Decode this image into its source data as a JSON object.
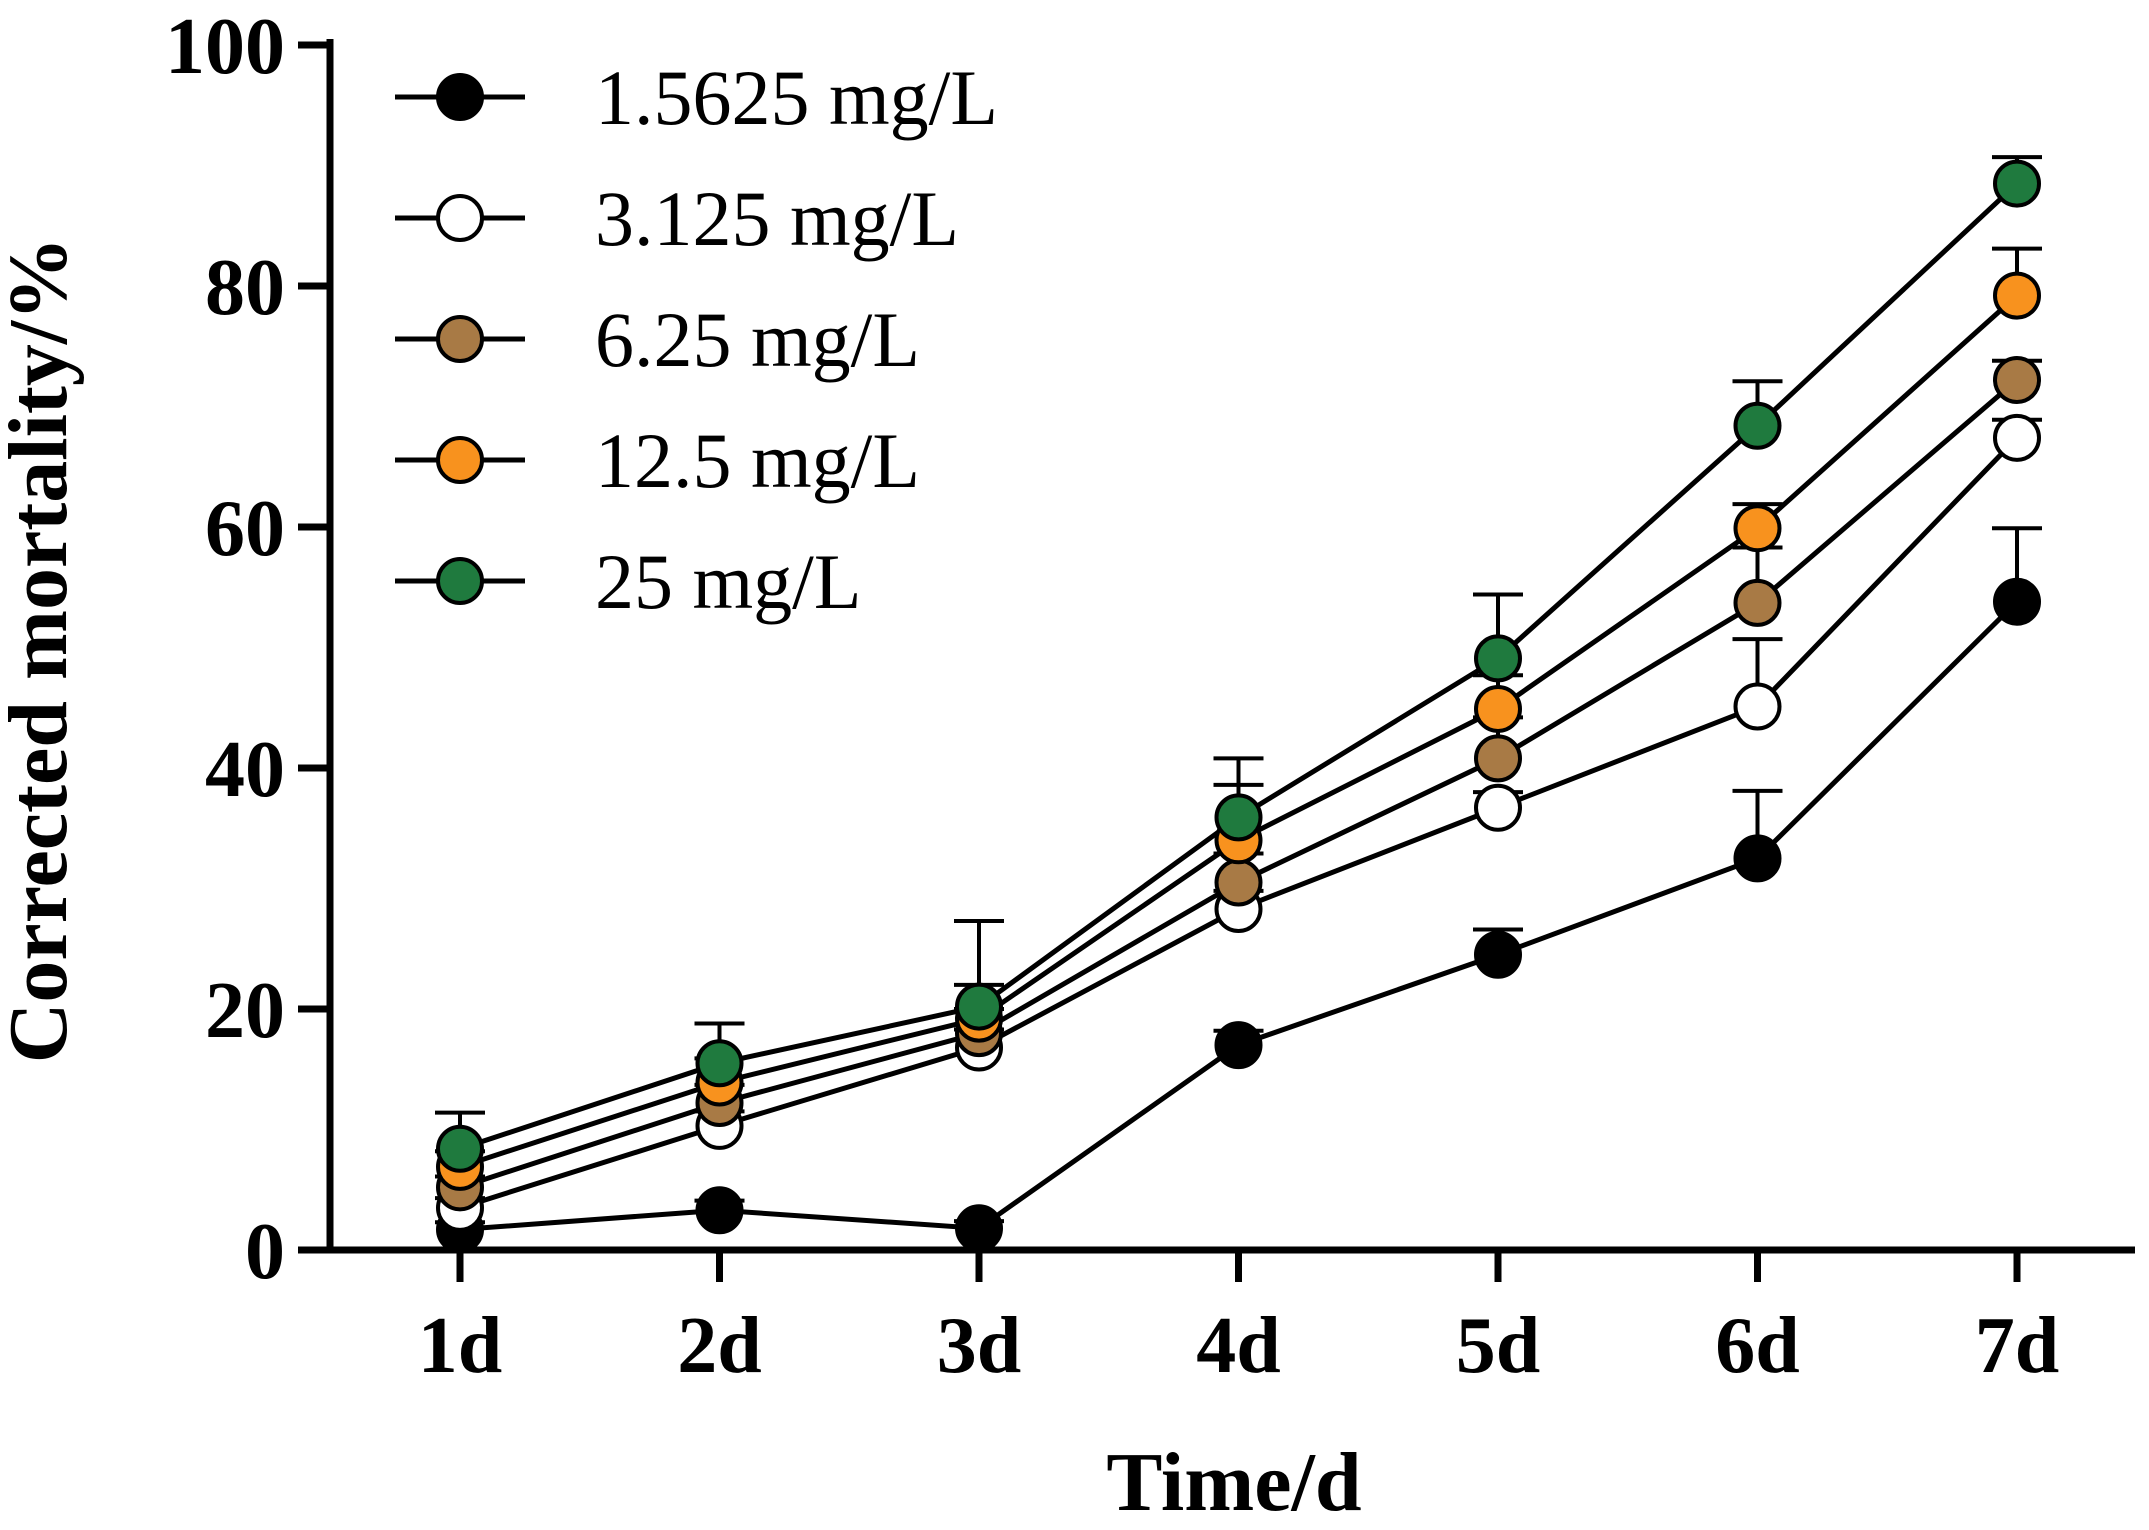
{
  "chart_data": {
    "type": "line",
    "title": "",
    "xlabel": "Time/d",
    "ylabel": "Corrected mortality/%",
    "categories": [
      "1d",
      "2d",
      "3d",
      "4d",
      "5d",
      "6d",
      "7d"
    ],
    "ylim": [
      0,
      100
    ],
    "yticks": [
      0,
      20,
      40,
      60,
      80,
      100
    ],
    "error_bars": "positive, upper only",
    "legend_position": "top-left",
    "series": [
      {
        "name": "1.5625 mg/L",
        "color": "#000000",
        "values": [
          1.7,
          3.3,
          1.8,
          17.0,
          24.5,
          32.5,
          53.8
        ],
        "errors": [
          0.6,
          0.8,
          0.6,
          1.2,
          2.1,
          5.6,
          6.1
        ]
      },
      {
        "name": "3.125 mg/L",
        "color": "#ffffff",
        "values": [
          3.5,
          10.3,
          16.8,
          28.3,
          36.7,
          45.1,
          67.4
        ],
        "errors": [
          0.8,
          1.2,
          1.5,
          1.5,
          1.3,
          5.6,
          1.5
        ]
      },
      {
        "name": "6.25 mg/L",
        "color": "#a87a45",
        "values": [
          5.2,
          12.2,
          18.0,
          30.5,
          40.8,
          53.7,
          72.2
        ],
        "errors": [
          0.9,
          1.5,
          2.0,
          2.4,
          3.4,
          4.6,
          1.6
        ]
      },
      {
        "name": "12.5 mg/L",
        "color": "#f8921e",
        "values": [
          6.9,
          13.9,
          19.2,
          34.0,
          44.9,
          59.9,
          79.2
        ],
        "errors": [
          1.3,
          2.0,
          2.8,
          4.6,
          2.8,
          2.0,
          3.9
        ]
      },
      {
        "name": "25 mg/L",
        "color": "#1f7a3e",
        "values": [
          8.4,
          15.5,
          20.2,
          35.9,
          49.1,
          68.4,
          88.5
        ],
        "errors": [
          3.0,
          3.3,
          7.1,
          4.9,
          5.3,
          3.7,
          2.2
        ]
      }
    ]
  }
}
